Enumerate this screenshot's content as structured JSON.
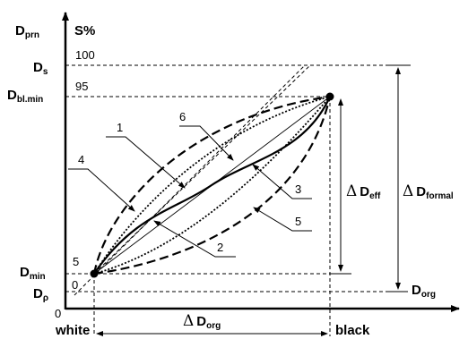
{
  "axes": {
    "y_axis_density": "D",
    "y_axis_density_sub": "prn",
    "y_axis_percent": "S%",
    "x_axis_left": "white",
    "x_axis_right": "black",
    "origin": "0"
  },
  "levels": {
    "ds": {
      "main": "D",
      "sub": "s",
      "percent": "100"
    },
    "dbl": {
      "main": "D",
      "sub": "bl.min",
      "percent": "95"
    },
    "dmin": {
      "main": "D",
      "sub": "min",
      "percent": "5"
    },
    "drho": {
      "main": "D",
      "sub": "ρ",
      "percent": "0"
    }
  },
  "dorg_label": {
    "main": "D",
    "sub": "org"
  },
  "dimensions": {
    "delta_org": {
      "delta": "Δ",
      "main": "D",
      "sub": "org"
    },
    "delta_eff": {
      "delta": "Δ",
      "main": "D",
      "sub": "eff"
    },
    "delta_formal": {
      "delta": "Δ",
      "main": "D",
      "sub": "formal"
    }
  },
  "curve_labels": [
    "1",
    "2",
    "3",
    "4",
    "5",
    "6"
  ]
}
